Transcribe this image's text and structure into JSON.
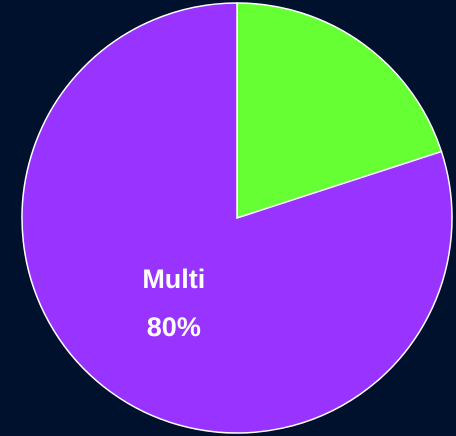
{
  "chart_data": {
    "type": "pie",
    "categories": [
      null,
      "Multi"
    ],
    "values": [
      20,
      80
    ],
    "value_labels": [
      null,
      "80%"
    ],
    "colors": [
      "#66ff33",
      "#9933ff"
    ]
  }
}
